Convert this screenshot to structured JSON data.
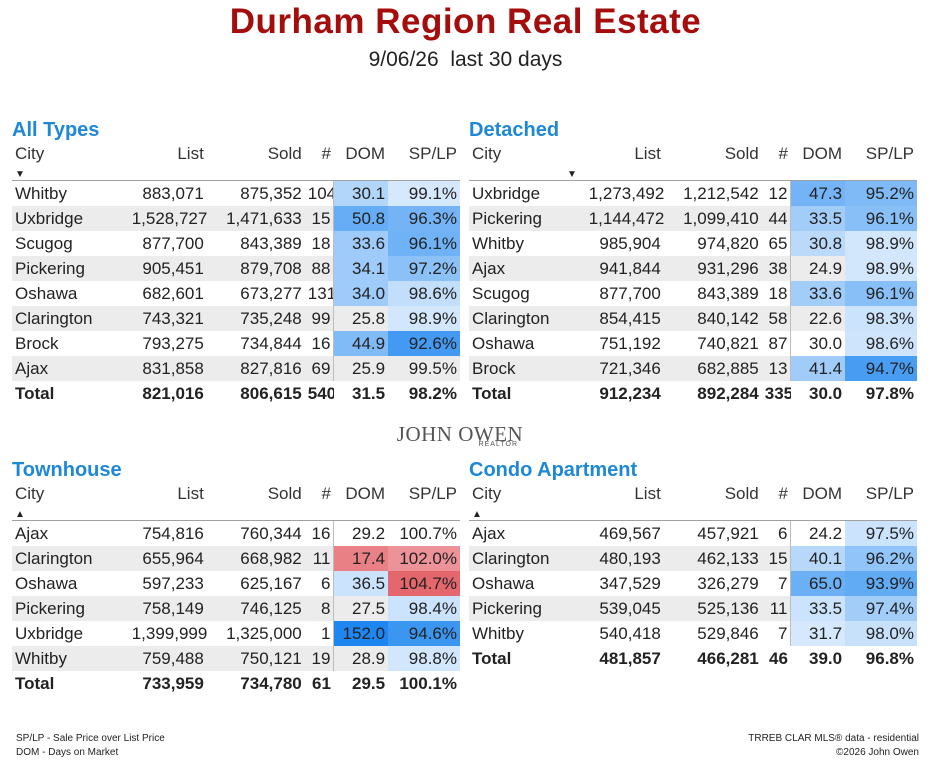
{
  "title": "Durham Region Real Estate",
  "subtitle": "9/06/26  last 30 days",
  "headers": {
    "city": "City",
    "list": "List",
    "sold": "Sold",
    "count": "#",
    "dom": "DOM",
    "splp": "SP/LP"
  },
  "sort_indicator": {
    "down": "▼",
    "up": "▲"
  },
  "logo": {
    "name": "JOHN OWEN",
    "sub": "REALTOR"
  },
  "footer": {
    "left1": "SP/LP - Sale Price over List Price",
    "left2": "DOM - Days on Market",
    "right1": "TRREB CLAR MLS® data - residential",
    "right2": "©2026 John Owen"
  },
  "colors": {
    "title": "#a50d0d",
    "section": "#1e88d8",
    "blue_heat": "#1e86f0",
    "red_heat": "#dc323c"
  },
  "sections": [
    {
      "id": "all-types",
      "title": "All Types",
      "sort_col": "city",
      "sort_dir": "down",
      "rows": [
        {
          "city": "Whitby",
          "list": "883,071",
          "sold": "875,352",
          "count": "104",
          "dom": "30.1",
          "splp": "99.1%",
          "dom_h": 0.22,
          "splp_h": 0.05
        },
        {
          "city": "Uxbridge",
          "list": "1,528,727",
          "sold": "1,471,633",
          "count": "15",
          "dom": "50.8",
          "splp": "96.3%",
          "dom_h": 0.62,
          "splp_h": 0.55
        },
        {
          "city": "Scugog",
          "list": "877,700",
          "sold": "843,389",
          "count": "18",
          "dom": "33.6",
          "splp": "96.1%",
          "dom_h": 0.33,
          "splp_h": 0.58
        },
        {
          "city": "Pickering",
          "list": "905,451",
          "sold": "879,708",
          "count": "88",
          "dom": "34.1",
          "splp": "97.2%",
          "dom_h": 0.33,
          "splp_h": 0.42
        },
        {
          "city": "Oshawa",
          "list": "682,601",
          "sold": "673,277",
          "count": "131",
          "dom": "34.0",
          "splp": "98.6%",
          "dom_h": 0.33,
          "splp_h": 0.14
        },
        {
          "city": "Clarington",
          "list": "743,321",
          "sold": "735,248",
          "count": "99",
          "dom": "25.8",
          "splp": "98.9%",
          "dom_h": 0,
          "splp_h": 0.06
        },
        {
          "city": "Brock",
          "list": "793,275",
          "sold": "734,844",
          "count": "16",
          "dom": "44.9",
          "splp": "92.6%",
          "dom_h": 0.48,
          "splp_h": 0.8
        },
        {
          "city": "Ajax",
          "list": "831,858",
          "sold": "827,816",
          "count": "69",
          "dom": "25.9",
          "splp": "99.5%",
          "dom_h": 0,
          "splp_h": 0
        }
      ],
      "total": {
        "city": "Total",
        "list": "821,016",
        "sold": "806,615",
        "count": "540",
        "dom": "31.5",
        "splp": "98.2%"
      }
    },
    {
      "id": "detached",
      "title": "Detached",
      "sort_col": "list",
      "sort_dir": "down",
      "rows": [
        {
          "city": "Uxbridge",
          "list": "1,273,492",
          "sold": "1,212,542",
          "count": "12",
          "dom": "47.3",
          "splp": "95.2%",
          "dom_h": 0.55,
          "splp_h": 0.5
        },
        {
          "city": "Pickering",
          "list": "1,144,472",
          "sold": "1,099,410",
          "count": "44",
          "dom": "33.5",
          "splp": "96.1%",
          "dom_h": 0.3,
          "splp_h": 0.45
        },
        {
          "city": "Whitby",
          "list": "985,904",
          "sold": "974,820",
          "count": "65",
          "dom": "30.8",
          "splp": "98.9%",
          "dom_h": 0.18,
          "splp_h": 0.06
        },
        {
          "city": "Ajax",
          "list": "941,844",
          "sold": "931,296",
          "count": "38",
          "dom": "24.9",
          "splp": "98.9%",
          "dom_h": 0,
          "splp_h": 0.06
        },
        {
          "city": "Scugog",
          "list": "877,700",
          "sold": "843,389",
          "count": "18",
          "dom": "33.6",
          "splp": "96.1%",
          "dom_h": 0.3,
          "splp_h": 0.45
        },
        {
          "city": "Clarington",
          "list": "854,415",
          "sold": "840,142",
          "count": "58",
          "dom": "22.6",
          "splp": "98.3%",
          "dom_h": 0,
          "splp_h": 0.1
        },
        {
          "city": "Oshawa",
          "list": "751,192",
          "sold": "740,821",
          "count": "87",
          "dom": "30.0",
          "splp": "98.6%",
          "dom_h": 0,
          "splp_h": 0.08
        },
        {
          "city": "Brock",
          "list": "721,346",
          "sold": "682,885",
          "count": "13",
          "dom": "41.4",
          "splp": "94.7%",
          "dom_h": 0.32,
          "splp_h": 0.78
        }
      ],
      "total": {
        "city": "Total",
        "list": "912,234",
        "sold": "892,284",
        "count": "335",
        "dom": "30.0",
        "splp": "97.8%"
      }
    },
    {
      "id": "townhouse",
      "title": "Townhouse",
      "sort_col": "city",
      "sort_dir": "up",
      "rows": [
        {
          "city": "Ajax",
          "list": "754,816",
          "sold": "760,344",
          "count": "16",
          "dom": "29.2",
          "splp": "100.7%",
          "dom_h": 0,
          "splp_h": 0
        },
        {
          "city": "Clarington",
          "list": "655,964",
          "sold": "668,982",
          "count": "11",
          "dom": "17.4",
          "splp": "102.0%",
          "dom_h": -0.55,
          "splp_h": -0.45
        },
        {
          "city": "Oshawa",
          "list": "597,233",
          "sold": "625,167",
          "count": "6",
          "dom": "36.5",
          "splp": "104.7%",
          "dom_h": 0.1,
          "splp_h": -0.7
        },
        {
          "city": "Pickering",
          "list": "758,149",
          "sold": "746,125",
          "count": "8",
          "dom": "27.5",
          "splp": "98.4%",
          "dom_h": 0,
          "splp_h": 0.1
        },
        {
          "city": "Uxbridge",
          "list": "1,399,999",
          "sold": "1,325,000",
          "count": "1",
          "dom": "152.0",
          "splp": "94.6%",
          "dom_h": 1.0,
          "splp_h": 0.85
        },
        {
          "city": "Whitby",
          "list": "759,488",
          "sold": "750,121",
          "count": "19",
          "dom": "28.9",
          "splp": "98.8%",
          "dom_h": 0,
          "splp_h": 0.06
        }
      ],
      "total": {
        "city": "Total",
        "list": "733,959",
        "sold": "734,780",
        "count": "61",
        "dom": "29.5",
        "splp": "100.1%"
      }
    },
    {
      "id": "condo-apartment",
      "title": "Condo Apartment",
      "sort_col": "city",
      "sort_dir": "up",
      "rows": [
        {
          "city": "Ajax",
          "list": "469,567",
          "sold": "457,921",
          "count": "6",
          "dom": "24.2",
          "splp": "97.5%",
          "dom_h": 0,
          "splp_h": 0.1
        },
        {
          "city": "Clarington",
          "list": "480,193",
          "sold": "462,133",
          "count": "15",
          "dom": "40.1",
          "splp": "96.2%",
          "dom_h": 0.2,
          "splp_h": 0.4
        },
        {
          "city": "Oshawa",
          "list": "347,529",
          "sold": "326,279",
          "count": "7",
          "dom": "65.0",
          "splp": "93.9%",
          "dom_h": 0.6,
          "splp_h": 0.65
        },
        {
          "city": "Pickering",
          "list": "539,045",
          "sold": "525,136",
          "count": "11",
          "dom": "33.5",
          "splp": "97.4%",
          "dom_h": 0.1,
          "splp_h": 0.3
        },
        {
          "city": "Whitby",
          "list": "540,418",
          "sold": "529,846",
          "count": "7",
          "dom": "31.7",
          "splp": "98.0%",
          "dom_h": 0.05,
          "splp_h": 0.12
        }
      ],
      "total": {
        "city": "Total",
        "list": "481,857",
        "sold": "466,281",
        "count": "46",
        "dom": "39.0",
        "splp": "96.8%"
      }
    }
  ]
}
